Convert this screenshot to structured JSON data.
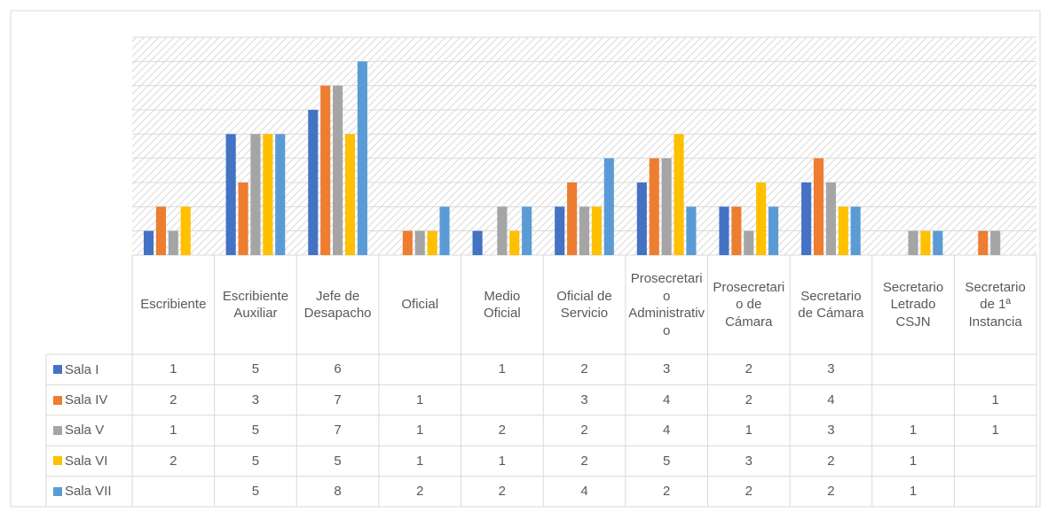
{
  "chart_data": {
    "type": "bar",
    "categories": [
      "Escribiente",
      "Escribiente Auxiliar",
      "Jefe de Desapacho",
      "Oficial",
      "Medio Oficial",
      "Oficial de Servicio",
      "Prosecretario Administrativo",
      "Prosecretario de Cámara",
      "Secretario de Cámara",
      "Secretario Letrado CSJN",
      "Secretario de 1ª Instancia"
    ],
    "series": [
      {
        "name": "Sala I",
        "color": "#4472c4",
        "values": [
          1,
          5,
          6,
          null,
          1,
          2,
          3,
          2,
          3,
          null,
          null
        ]
      },
      {
        "name": "Sala IV",
        "color": "#ed7d31",
        "values": [
          2,
          3,
          7,
          1,
          null,
          3,
          4,
          2,
          4,
          null,
          1
        ]
      },
      {
        "name": "Sala V",
        "color": "#a5a5a5",
        "values": [
          1,
          5,
          7,
          1,
          2,
          2,
          4,
          1,
          3,
          1,
          1
        ]
      },
      {
        "name": "Sala VI",
        "color": "#ffc000",
        "values": [
          2,
          5,
          5,
          1,
          1,
          2,
          5,
          3,
          2,
          1,
          null
        ]
      },
      {
        "name": "Sala VII",
        "color": "#5b9bd5",
        "values": [
          null,
          5,
          8,
          2,
          2,
          4,
          2,
          2,
          2,
          1,
          null
        ]
      }
    ],
    "ylim": [
      0,
      9
    ],
    "yticks": [
      0,
      1,
      2,
      3,
      4,
      5,
      6,
      7,
      8,
      9
    ],
    "grid": true
  }
}
